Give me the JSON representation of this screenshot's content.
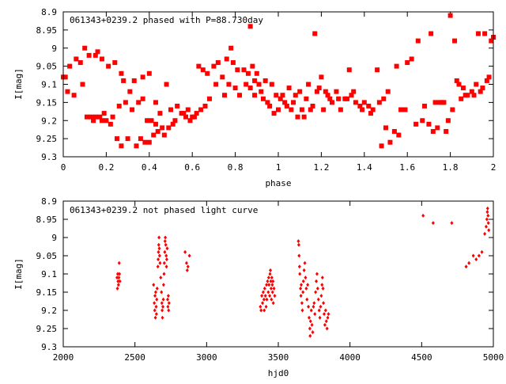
{
  "chart_data": [
    {
      "type": "scatter",
      "title": "061343+0239.2 phased with P=88.730day",
      "xlabel": "phase",
      "ylabel": "I[mag]",
      "xlim": [
        0,
        2
      ],
      "ylim": [
        9.3,
        8.9
      ],
      "y_inverted": true,
      "x_ticks": [
        "0",
        "0.2",
        "0.4",
        "0.6",
        "0.8",
        "1",
        "1.2",
        "1.4",
        "1.6",
        "1.8",
        "2"
      ],
      "y_ticks": [
        "8.9",
        "8.95",
        "9",
        "9.05",
        "9.1",
        "9.15",
        "9.2",
        "9.25",
        "9.3"
      ],
      "marker_color": "#ff0000",
      "marker": "large-square",
      "points": [
        [
          0.0,
          9.08
        ],
        [
          0.01,
          9.08
        ],
        [
          0.02,
          9.12
        ],
        [
          0.03,
          9.05
        ],
        [
          0.05,
          9.13
        ],
        [
          0.06,
          9.03
        ],
        [
          0.08,
          9.04
        ],
        [
          0.09,
          9.1
        ],
        [
          0.1,
          9.0
        ],
        [
          0.11,
          9.19
        ],
        [
          0.12,
          9.02
        ],
        [
          0.13,
          9.19
        ],
        [
          0.14,
          9.2
        ],
        [
          0.15,
          9.19
        ],
        [
          0.15,
          9.02
        ],
        [
          0.16,
          9.01
        ],
        [
          0.17,
          9.19
        ],
        [
          0.18,
          9.03
        ],
        [
          0.18,
          9.2
        ],
        [
          0.19,
          9.18
        ],
        [
          0.2,
          9.2
        ],
        [
          0.21,
          9.05
        ],
        [
          0.22,
          9.21
        ],
        [
          0.23,
          9.19
        ],
        [
          0.24,
          9.04
        ],
        [
          0.25,
          9.25
        ],
        [
          0.26,
          9.16
        ],
        [
          0.27,
          9.07
        ],
        [
          0.27,
          9.27
        ],
        [
          0.28,
          9.09
        ],
        [
          0.29,
          9.15
        ],
        [
          0.3,
          9.25
        ],
        [
          0.31,
          9.12
        ],
        [
          0.32,
          9.17
        ],
        [
          0.33,
          9.09
        ],
        [
          0.34,
          9.27
        ],
        [
          0.35,
          9.15
        ],
        [
          0.36,
          9.25
        ],
        [
          0.37,
          9.08
        ],
        [
          0.37,
          9.14
        ],
        [
          0.38,
          9.26
        ],
        [
          0.39,
          9.2
        ],
        [
          0.4,
          9.26
        ],
        [
          0.4,
          9.07
        ],
        [
          0.41,
          9.2
        ],
        [
          0.42,
          9.24
        ],
        [
          0.43,
          9.15
        ],
        [
          0.43,
          9.21
        ],
        [
          0.44,
          9.23
        ],
        [
          0.45,
          9.18
        ],
        [
          0.46,
          9.22
        ],
        [
          0.47,
          9.24
        ],
        [
          0.48,
          9.1
        ],
        [
          0.49,
          9.22
        ],
        [
          0.5,
          9.17
        ],
        [
          0.51,
          9.21
        ],
        [
          0.52,
          9.2
        ],
        [
          0.53,
          9.16
        ],
        [
          0.55,
          9.18
        ],
        [
          0.56,
          9.18
        ],
        [
          0.57,
          9.19
        ],
        [
          0.58,
          9.17
        ],
        [
          0.59,
          9.2
        ],
        [
          0.6,
          9.19
        ],
        [
          0.61,
          9.19
        ],
        [
          0.62,
          9.18
        ],
        [
          0.63,
          9.05
        ],
        [
          0.64,
          9.17
        ],
        [
          0.65,
          9.06
        ],
        [
          0.66,
          9.16
        ],
        [
          0.67,
          9.07
        ],
        [
          0.68,
          9.14
        ],
        [
          0.7,
          9.05
        ],
        [
          0.71,
          9.1
        ],
        [
          0.72,
          9.04
        ],
        [
          0.74,
          9.08
        ],
        [
          0.75,
          9.13
        ],
        [
          0.76,
          9.03
        ],
        [
          0.77,
          9.1
        ],
        [
          0.78,
          9.0
        ],
        [
          0.79,
          9.04
        ],
        [
          0.8,
          9.11
        ],
        [
          0.81,
          9.06
        ],
        [
          0.82,
          9.13
        ],
        [
          0.84,
          9.06
        ],
        [
          0.85,
          9.1
        ],
        [
          0.86,
          9.07
        ],
        [
          0.87,
          8.94
        ],
        [
          0.87,
          9.11
        ],
        [
          0.88,
          9.05
        ],
        [
          0.89,
          9.13
        ],
        [
          0.89,
          9.09
        ],
        [
          0.9,
          9.07
        ],
        [
          0.91,
          9.1
        ],
        [
          0.92,
          9.12
        ],
        [
          0.93,
          9.14
        ],
        [
          0.94,
          9.09
        ],
        [
          0.95,
          9.15
        ],
        [
          0.96,
          9.16
        ],
        [
          0.97,
          9.1
        ],
        [
          0.98,
          9.18
        ],
        [
          0.99,
          9.13
        ],
        [
          1.0,
          9.17
        ],
        [
          1.01,
          9.14
        ],
        [
          1.02,
          9.13
        ],
        [
          1.03,
          9.15
        ],
        [
          1.04,
          9.16
        ],
        [
          1.05,
          9.11
        ],
        [
          1.06,
          9.17
        ],
        [
          1.07,
          9.15
        ],
        [
          1.08,
          9.13
        ],
        [
          1.09,
          9.19
        ],
        [
          1.1,
          9.12
        ],
        [
          1.11,
          9.17
        ],
        [
          1.12,
          9.19
        ],
        [
          1.13,
          9.14
        ],
        [
          1.14,
          9.1
        ],
        [
          1.15,
          9.17
        ],
        [
          1.16,
          9.16
        ],
        [
          1.17,
          8.96
        ],
        [
          1.18,
          9.12
        ],
        [
          1.19,
          9.11
        ],
        [
          1.2,
          9.08
        ],
        [
          1.21,
          9.17
        ],
        [
          1.22,
          9.12
        ],
        [
          1.23,
          9.13
        ],
        [
          1.24,
          9.14
        ],
        [
          1.25,
          9.15
        ],
        [
          1.27,
          9.12
        ],
        [
          1.28,
          9.14
        ],
        [
          1.29,
          9.17
        ],
        [
          1.31,
          9.14
        ],
        [
          1.32,
          9.14
        ],
        [
          1.33,
          9.06
        ],
        [
          1.34,
          9.13
        ],
        [
          1.35,
          9.12
        ],
        [
          1.36,
          9.15
        ],
        [
          1.38,
          9.16
        ],
        [
          1.39,
          9.17
        ],
        [
          1.4,
          9.15
        ],
        [
          1.42,
          9.16
        ],
        [
          1.43,
          9.18
        ],
        [
          1.44,
          9.17
        ],
        [
          1.46,
          9.06
        ],
        [
          1.47,
          9.15
        ],
        [
          1.48,
          9.27
        ],
        [
          1.49,
          9.14
        ],
        [
          1.5,
          9.22
        ],
        [
          1.51,
          9.12
        ],
        [
          1.52,
          9.26
        ],
        [
          1.54,
          9.23
        ],
        [
          1.55,
          9.05
        ],
        [
          1.56,
          9.24
        ],
        [
          1.57,
          9.17
        ],
        [
          1.59,
          9.17
        ],
        [
          1.6,
          9.04
        ],
        [
          1.62,
          9.03
        ],
        [
          1.64,
          9.21
        ],
        [
          1.65,
          8.98
        ],
        [
          1.67,
          9.2
        ],
        [
          1.68,
          9.16
        ],
        [
          1.7,
          9.21
        ],
        [
          1.71,
          8.96
        ],
        [
          1.72,
          9.23
        ],
        [
          1.73,
          9.15
        ],
        [
          1.74,
          9.22
        ],
        [
          1.75,
          9.15
        ],
        [
          1.76,
          9.15
        ],
        [
          1.77,
          9.15
        ],
        [
          1.78,
          9.23
        ],
        [
          1.79,
          9.2
        ],
        [
          1.8,
          8.91
        ],
        [
          1.81,
          9.17
        ],
        [
          1.82,
          8.98
        ],
        [
          1.83,
          9.09
        ],
        [
          1.84,
          9.1
        ],
        [
          1.85,
          9.14
        ],
        [
          1.86,
          9.11
        ],
        [
          1.87,
          9.13
        ],
        [
          1.88,
          9.13
        ],
        [
          1.9,
          9.12
        ],
        [
          1.91,
          9.13
        ],
        [
          1.92,
          9.1
        ],
        [
          1.93,
          8.96
        ],
        [
          1.94,
          9.12
        ],
        [
          1.95,
          9.11
        ],
        [
          1.96,
          8.96
        ],
        [
          1.97,
          9.09
        ],
        [
          1.98,
          9.08
        ],
        [
          1.99,
          8.98
        ],
        [
          2.0,
          8.97
        ]
      ]
    },
    {
      "type": "scatter",
      "title": "061343+0239.2 not phased light curve",
      "xlabel": "hjd0",
      "ylabel": "I[mag]",
      "xlim": [
        2000,
        5000
      ],
      "ylim": [
        9.3,
        8.9
      ],
      "y_inverted": true,
      "x_ticks": [
        "2000",
        "2500",
        "3000",
        "3500",
        "4000",
        "4500",
        "5000"
      ],
      "y_ticks": [
        "8.9",
        "8.95",
        "9",
        "9.05",
        "9.1",
        "9.15",
        "9.2",
        "9.25",
        "9.3"
      ],
      "marker_color": "#ff0000",
      "marker": "small-diamond",
      "points": [
        [
          2375,
          9.11
        ],
        [
          2378,
          9.14
        ],
        [
          2380,
          9.1
        ],
        [
          2382,
          9.12
        ],
        [
          2385,
          9.13
        ],
        [
          2388,
          9.11
        ],
        [
          2390,
          9.07
        ],
        [
          2392,
          9.1
        ],
        [
          2395,
          9.12
        ],
        [
          2630,
          9.13
        ],
        [
          2635,
          9.18
        ],
        [
          2638,
          9.2
        ],
        [
          2640,
          9.16
        ],
        [
          2643,
          9.22
        ],
        [
          2645,
          9.15
        ],
        [
          2648,
          9.19
        ],
        [
          2650,
          9.21
        ],
        [
          2652,
          9.17
        ],
        [
          2655,
          9.14
        ],
        [
          2660,
          9.08
        ],
        [
          2662,
          9.06
        ],
        [
          2664,
          9.04
        ],
        [
          2666,
          9.02
        ],
        [
          2668,
          9.0
        ],
        [
          2670,
          9.03
        ],
        [
          2672,
          9.05
        ],
        [
          2675,
          9.07
        ],
        [
          2680,
          9.11
        ],
        [
          2685,
          9.15
        ],
        [
          2688,
          9.18
        ],
        [
          2690,
          9.2
        ],
        [
          2692,
          9.22
        ],
        [
          2695,
          9.19
        ],
        [
          2698,
          9.17
        ],
        [
          2700,
          9.13
        ],
        [
          2703,
          9.1
        ],
        [
          2705,
          9.07
        ],
        [
          2708,
          9.04
        ],
        [
          2710,
          9.01
        ],
        [
          2712,
          9.0
        ],
        [
          2715,
          9.02
        ],
        [
          2718,
          9.05
        ],
        [
          2720,
          9.08
        ],
        [
          2722,
          9.06
        ],
        [
          2725,
          9.03
        ],
        [
          2728,
          9.17
        ],
        [
          2730,
          9.19
        ],
        [
          2733,
          9.16
        ],
        [
          2735,
          9.2
        ],
        [
          2738,
          9.18
        ],
        [
          2850,
          9.04
        ],
        [
          2860,
          9.07
        ],
        [
          2865,
          9.09
        ],
        [
          2870,
          9.08
        ],
        [
          2880,
          9.05
        ],
        [
          3375,
          9.19
        ],
        [
          3380,
          9.2
        ],
        [
          3385,
          9.16
        ],
        [
          3390,
          9.18
        ],
        [
          3395,
          9.15
        ],
        [
          3400,
          9.17
        ],
        [
          3402,
          9.2
        ],
        [
          3405,
          9.14
        ],
        [
          3410,
          9.16
        ],
        [
          3415,
          9.19
        ],
        [
          3418,
          9.13
        ],
        [
          3420,
          9.17
        ],
        [
          3425,
          9.12
        ],
        [
          3430,
          9.15
        ],
        [
          3433,
          9.11
        ],
        [
          3435,
          9.13
        ],
        [
          3440,
          9.16
        ],
        [
          3442,
          9.1
        ],
        [
          3445,
          9.09
        ],
        [
          3448,
          9.12
        ],
        [
          3450,
          9.14
        ],
        [
          3452,
          9.17
        ],
        [
          3455,
          9.11
        ],
        [
          3458,
          9.13
        ],
        [
          3460,
          9.15
        ],
        [
          3463,
          9.12
        ],
        [
          3465,
          9.18
        ],
        [
          3470,
          9.14
        ],
        [
          3475,
          9.16
        ],
        [
          3640,
          9.01
        ],
        [
          3643,
          9.02
        ],
        [
          3645,
          9.05
        ],
        [
          3648,
          9.08
        ],
        [
          3650,
          9.1
        ],
        [
          3655,
          9.14
        ],
        [
          3658,
          9.16
        ],
        [
          3660,
          9.13
        ],
        [
          3665,
          9.18
        ],
        [
          3668,
          9.2
        ],
        [
          3672,
          9.15
        ],
        [
          3675,
          9.12
        ],
        [
          3680,
          9.09
        ],
        [
          3685,
          9.07
        ],
        [
          3690,
          9.11
        ],
        [
          3695,
          9.14
        ],
        [
          3700,
          9.17
        ],
        [
          3705,
          9.13
        ],
        [
          3710,
          9.19
        ],
        [
          3715,
          9.22
        ],
        [
          3720,
          9.25
        ],
        [
          3722,
          9.27
        ],
        [
          3725,
          9.23
        ],
        [
          3730,
          9.2
        ],
        [
          3735,
          9.24
        ],
        [
          3740,
          9.26
        ],
        [
          3745,
          9.19
        ],
        [
          3750,
          9.18
        ],
        [
          3755,
          9.21
        ],
        [
          3760,
          9.15
        ],
        [
          3765,
          9.12
        ],
        [
          3770,
          9.1
        ],
        [
          3775,
          9.14
        ],
        [
          3780,
          9.17
        ],
        [
          3785,
          9.2
        ],
        [
          3790,
          9.22
        ],
        [
          3795,
          9.19
        ],
        [
          3800,
          9.16
        ],
        [
          3805,
          9.13
        ],
        [
          3808,
          9.11
        ],
        [
          3812,
          9.14
        ],
        [
          3815,
          9.18
        ],
        [
          3820,
          9.21
        ],
        [
          3825,
          9.24
        ],
        [
          3830,
          9.2
        ],
        [
          3835,
          9.23
        ],
        [
          3840,
          9.25
        ],
        [
          3845,
          9.22
        ],
        [
          3850,
          9.21
        ],
        [
          4510,
          8.94
        ],
        [
          4580,
          8.96
        ],
        [
          4710,
          8.96
        ],
        [
          4810,
          9.08
        ],
        [
          4830,
          9.07
        ],
        [
          4860,
          9.05
        ],
        [
          4880,
          9.06
        ],
        [
          4900,
          9.05
        ],
        [
          4920,
          9.04
        ],
        [
          4940,
          8.99
        ],
        [
          4950,
          8.97
        ],
        [
          4955,
          8.95
        ],
        [
          4958,
          8.93
        ],
        [
          4960,
          8.92
        ],
        [
          4963,
          8.94
        ],
        [
          4965,
          8.96
        ],
        [
          4968,
          8.98
        ]
      ]
    }
  ]
}
